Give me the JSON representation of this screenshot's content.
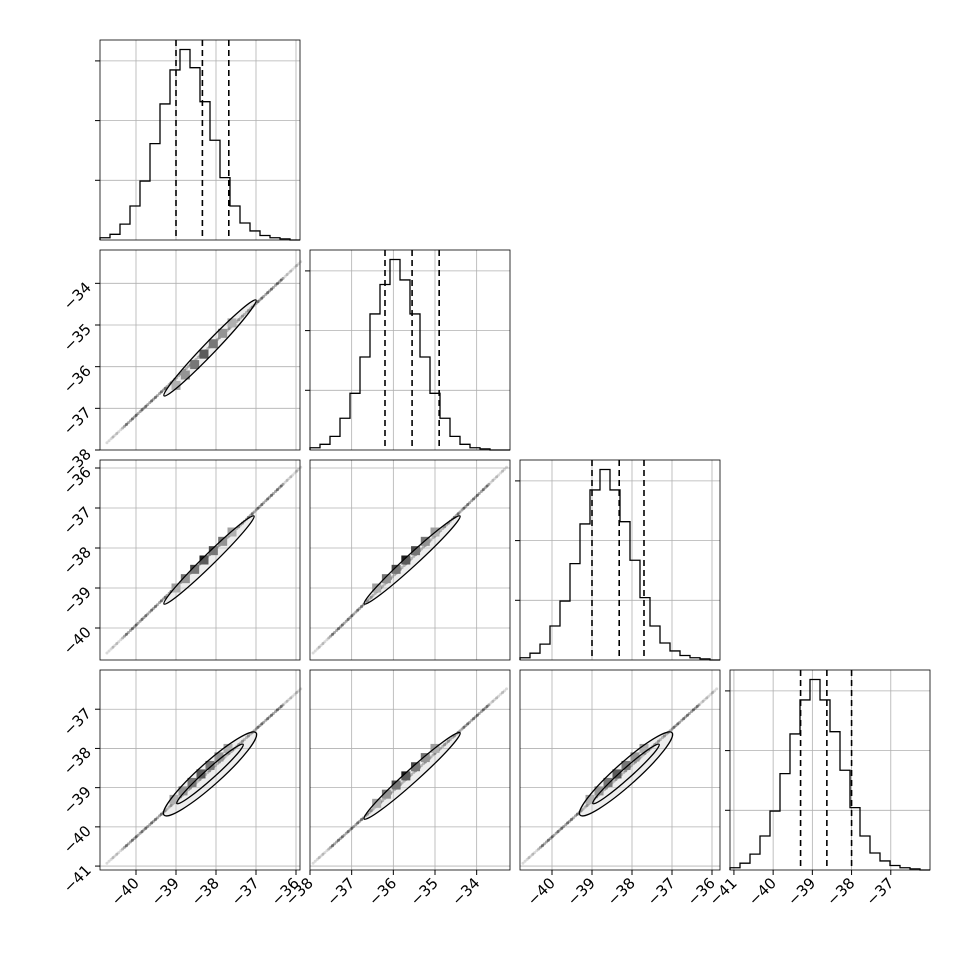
{
  "chart_data": {
    "type": "corner",
    "parameters": [
      {
        "range": [
          -40.9,
          -35.9
        ],
        "ticks": [
          -40,
          -39,
          -38,
          -37,
          -36
        ]
      },
      {
        "range": [
          -38.0,
          -33.2
        ],
        "ticks": [
          -38,
          -37,
          -36,
          -35,
          -34
        ]
      },
      {
        "range": [
          -40.8,
          -35.8
        ],
        "ticks": [
          -40,
          -39,
          -38,
          -37,
          -36
        ]
      },
      {
        "range": [
          -41.1,
          -36.0
        ],
        "ticks": [
          -41,
          -40,
          -39,
          -38,
          -37
        ]
      }
    ],
    "y_tick_labels": {
      "row1": [
        -38,
        -37,
        -36,
        -35,
        -34
      ],
      "row2": [
        -40,
        -39,
        -38,
        -37,
        -36
      ],
      "row3": [
        -41,
        -40,
        -39,
        -38,
        -37
      ]
    },
    "histograms": [
      {
        "param": 0,
        "bins": 20,
        "counts": [
          2,
          5,
          14,
          30,
          52,
          85,
          120,
          150,
          168,
          152,
          122,
          88,
          55,
          30,
          15,
          8,
          4,
          2,
          1,
          0
        ],
        "quantiles": [
          -39.0,
          -38.34,
          -37.68
        ]
      },
      {
        "param": 1,
        "bins": 20,
        "counts": [
          2,
          5,
          12,
          28,
          50,
          82,
          120,
          146,
          168,
          150,
          120,
          82,
          50,
          28,
          12,
          5,
          2,
          1,
          0,
          0
        ],
        "quantiles": [
          -36.2,
          -35.55,
          -34.9
        ]
      },
      {
        "param": 2,
        "bins": 20,
        "counts": [
          2,
          6,
          14,
          30,
          52,
          85,
          120,
          150,
          168,
          150,
          122,
          88,
          55,
          30,
          15,
          8,
          4,
          2,
          1,
          0
        ],
        "quantiles": [
          -39.0,
          -38.32,
          -37.7
        ]
      },
      {
        "param": 3,
        "bins": 20,
        "counts": [
          2,
          6,
          14,
          30,
          52,
          85,
          120,
          150,
          168,
          150,
          122,
          88,
          55,
          30,
          15,
          8,
          4,
          2,
          1,
          0
        ],
        "quantiles": [
          -39.3,
          -38.63,
          -38.0
        ]
      }
    ],
    "panels_2d": [
      {
        "row": 1,
        "col": 0,
        "x_start": -40.7,
        "y_start": -37.8,
        "x_end": -35.9,
        "y_end": -33.5,
        "center": [
          -38.27,
          -35.55
        ],
        "contour_ends": [
          [
            -39.3,
            -36.7
          ],
          [
            -37.0,
            -34.4
          ]
        ],
        "inner_ends": [
          [
            -39.0,
            -36.45
          ],
          [
            -37.6,
            -34.95
          ]
        ],
        "width": 0.09
      },
      {
        "row": 2,
        "col": 0,
        "x_start": -40.7,
        "y_start": -40.6,
        "x_end": -35.9,
        "y_end": -36.0,
        "center": [
          -38.3,
          -38.25
        ],
        "contour_ends": [
          [
            -39.3,
            -39.4
          ],
          [
            -37.05,
            -37.2
          ]
        ],
        "inner_ends": [
          [
            -39.0,
            -39.0
          ],
          [
            -37.6,
            -37.6
          ]
        ],
        "width": 0.09
      },
      {
        "row": 2,
        "col": 1,
        "x_start": -37.9,
        "y_start": -40.6,
        "x_end": -33.3,
        "y_end": -36.0,
        "center": [
          -35.55,
          -38.25
        ],
        "contour_ends": [
          [
            -36.7,
            -39.4
          ],
          [
            -34.4,
            -37.2
          ]
        ],
        "inner_ends": [
          [
            -36.4,
            -39.0
          ],
          [
            -35.0,
            -37.6
          ]
        ],
        "width": 0.09
      },
      {
        "row": 3,
        "col": 0,
        "x_start": -40.7,
        "y_start": -40.9,
        "x_end": -35.9,
        "y_end": -36.5,
        "center": [
          -38.3,
          -38.6
        ],
        "contour_ends": [
          [
            -39.3,
            -39.7
          ],
          [
            -37.0,
            -37.6
          ]
        ],
        "inner_ends": [
          [
            -39.05,
            -39.3
          ],
          [
            -37.7,
            -38.0
          ]
        ],
        "width": 0.18
      },
      {
        "row": 3,
        "col": 1,
        "x_start": -37.9,
        "y_start": -40.9,
        "x_end": -33.3,
        "y_end": -36.5,
        "center": [
          -35.55,
          -38.6
        ],
        "contour_ends": [
          [
            -36.7,
            -39.8
          ],
          [
            -34.4,
            -37.6
          ]
        ],
        "inner_ends": [
          [
            -36.4,
            -39.4
          ],
          [
            -35.0,
            -38.0
          ]
        ],
        "width": 0.1
      },
      {
        "row": 3,
        "col": 2,
        "x_start": -40.7,
        "y_start": -40.9,
        "x_end": -35.9,
        "y_end": -36.5,
        "center": [
          -38.3,
          -38.6
        ],
        "contour_ends": [
          [
            -39.3,
            -39.7
          ],
          [
            -37.0,
            -37.6
          ]
        ],
        "inner_ends": [
          [
            -39.05,
            -39.3
          ],
          [
            -37.7,
            -38.0
          ]
        ],
        "width": 0.18
      }
    ]
  }
}
